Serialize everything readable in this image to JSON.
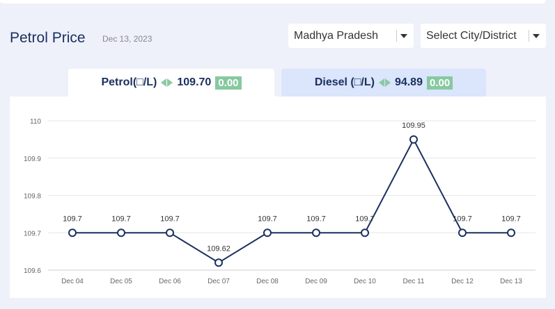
{
  "header": {
    "title": "Petrol Price",
    "date": "Dec 13, 2023",
    "state_select": "Madhya Pradesh",
    "city_select": "Select City/District"
  },
  "tabs": [
    {
      "label": "Petrol(□/L)",
      "price": "109.70",
      "change": "0.00"
    },
    {
      "label": "Diesel (□/L)",
      "price": "94.89",
      "change": "0.00"
    }
  ],
  "colors": {
    "line": "#1a3060",
    "accent": "#86c9a0",
    "title": "#1a3060"
  },
  "chart_data": {
    "type": "line",
    "x": [
      "Dec 04",
      "Dec 05",
      "Dec 06",
      "Dec 07",
      "Dec 08",
      "Dec 09",
      "Dec 10",
      "Dec 11",
      "Dec 12",
      "Dec 13"
    ],
    "values": [
      109.7,
      109.7,
      109.7,
      109.62,
      109.7,
      109.7,
      109.7,
      109.95,
      109.7,
      109.7
    ],
    "data_labels": [
      "109.7",
      "109.7",
      "109.7",
      "109.62",
      "109.7",
      "109.7",
      "109.7",
      "109.95",
      "109.7",
      "109.7"
    ],
    "y_ticks": [
      "110",
      "109.9",
      "109.8",
      "109.7",
      "109.6"
    ],
    "ylim": [
      109.6,
      110
    ],
    "grid": true
  }
}
